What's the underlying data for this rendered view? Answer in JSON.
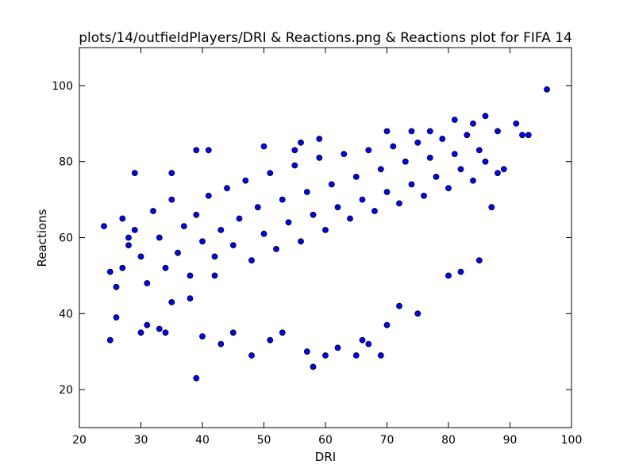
{
  "chart_data": {
    "type": "scatter",
    "title": "plots/14/outfieldPlayers/DRI & Reactions.png & Reactions plot for FIFA 14",
    "xlabel": "DRI",
    "ylabel": "Reactions",
    "xlim": [
      20,
      100
    ],
    "ylim": [
      10,
      110
    ],
    "x_ticks": [
      20,
      30,
      40,
      50,
      60,
      70,
      80,
      90,
      100
    ],
    "y_ticks": [
      20,
      40,
      60,
      80,
      100
    ],
    "grid": false,
    "marker_color": "#0000ff",
    "marker_edge_color": "#000000",
    "series": [
      {
        "points": [
          [
            24,
            63
          ],
          [
            25,
            33
          ],
          [
            25,
            51
          ],
          [
            26,
            39
          ],
          [
            26,
            47
          ],
          [
            27,
            65
          ],
          [
            28,
            60
          ],
          [
            29,
            77
          ],
          [
            30,
            35
          ],
          [
            31,
            37
          ],
          [
            33,
            36
          ],
          [
            34,
            35
          ],
          [
            35,
            77
          ],
          [
            35,
            43
          ],
          [
            38,
            44
          ],
          [
            39,
            83
          ],
          [
            39,
            23
          ],
          [
            40,
            34
          ],
          [
            41,
            83
          ],
          [
            42,
            50
          ],
          [
            43,
            32
          ],
          [
            45,
            35
          ],
          [
            48,
            29
          ],
          [
            50,
            84
          ],
          [
            51,
            33
          ],
          [
            53,
            35
          ],
          [
            55,
            83
          ],
          [
            56,
            85
          ],
          [
            57,
            30
          ],
          [
            58,
            26
          ],
          [
            59,
            86
          ],
          [
            60,
            29
          ],
          [
            62,
            31
          ],
          [
            65,
            29
          ],
          [
            66,
            33
          ],
          [
            67,
            32
          ],
          [
            69,
            29
          ],
          [
            70,
            37
          ],
          [
            70,
            88
          ],
          [
            72,
            42
          ],
          [
            74,
            88
          ],
          [
            75,
            40
          ],
          [
            77,
            88
          ],
          [
            80,
            50
          ],
          [
            81,
            91
          ],
          [
            82,
            51
          ],
          [
            84,
            90
          ],
          [
            85,
            54
          ],
          [
            86,
            92
          ],
          [
            87,
            68
          ],
          [
            88,
            88
          ],
          [
            88,
            77
          ],
          [
            89,
            78
          ],
          [
            91,
            90
          ],
          [
            92,
            87
          ],
          [
            93,
            87
          ],
          [
            96,
            99
          ],
          [
            27,
            52
          ],
          [
            28,
            58
          ],
          [
            29,
            62
          ],
          [
            30,
            55
          ],
          [
            31,
            48
          ],
          [
            32,
            67
          ],
          [
            33,
            60
          ],
          [
            34,
            52
          ],
          [
            35,
            70
          ],
          [
            36,
            56
          ],
          [
            37,
            63
          ],
          [
            38,
            50
          ],
          [
            39,
            66
          ],
          [
            40,
            59
          ],
          [
            41,
            71
          ],
          [
            42,
            55
          ],
          [
            43,
            62
          ],
          [
            44,
            73
          ],
          [
            45,
            58
          ],
          [
            46,
            65
          ],
          [
            47,
            75
          ],
          [
            48,
            54
          ],
          [
            49,
            68
          ],
          [
            50,
            61
          ],
          [
            51,
            77
          ],
          [
            52,
            57
          ],
          [
            53,
            70
          ],
          [
            54,
            64
          ],
          [
            55,
            79
          ],
          [
            56,
            59
          ],
          [
            57,
            72
          ],
          [
            58,
            66
          ],
          [
            59,
            81
          ],
          [
            60,
            62
          ],
          [
            61,
            74
          ],
          [
            62,
            68
          ],
          [
            63,
            82
          ],
          [
            64,
            65
          ],
          [
            65,
            76
          ],
          [
            66,
            70
          ],
          [
            67,
            83
          ],
          [
            68,
            67
          ],
          [
            69,
            78
          ],
          [
            70,
            72
          ],
          [
            71,
            84
          ],
          [
            72,
            69
          ],
          [
            73,
            80
          ],
          [
            74,
            74
          ],
          [
            75,
            85
          ],
          [
            76,
            71
          ],
          [
            77,
            81
          ],
          [
            78,
            76
          ],
          [
            79,
            86
          ],
          [
            80,
            73
          ],
          [
            81,
            82
          ],
          [
            82,
            78
          ],
          [
            83,
            87
          ],
          [
            84,
            75
          ],
          [
            85,
            83
          ],
          [
            86,
            80
          ]
        ]
      }
    ]
  }
}
